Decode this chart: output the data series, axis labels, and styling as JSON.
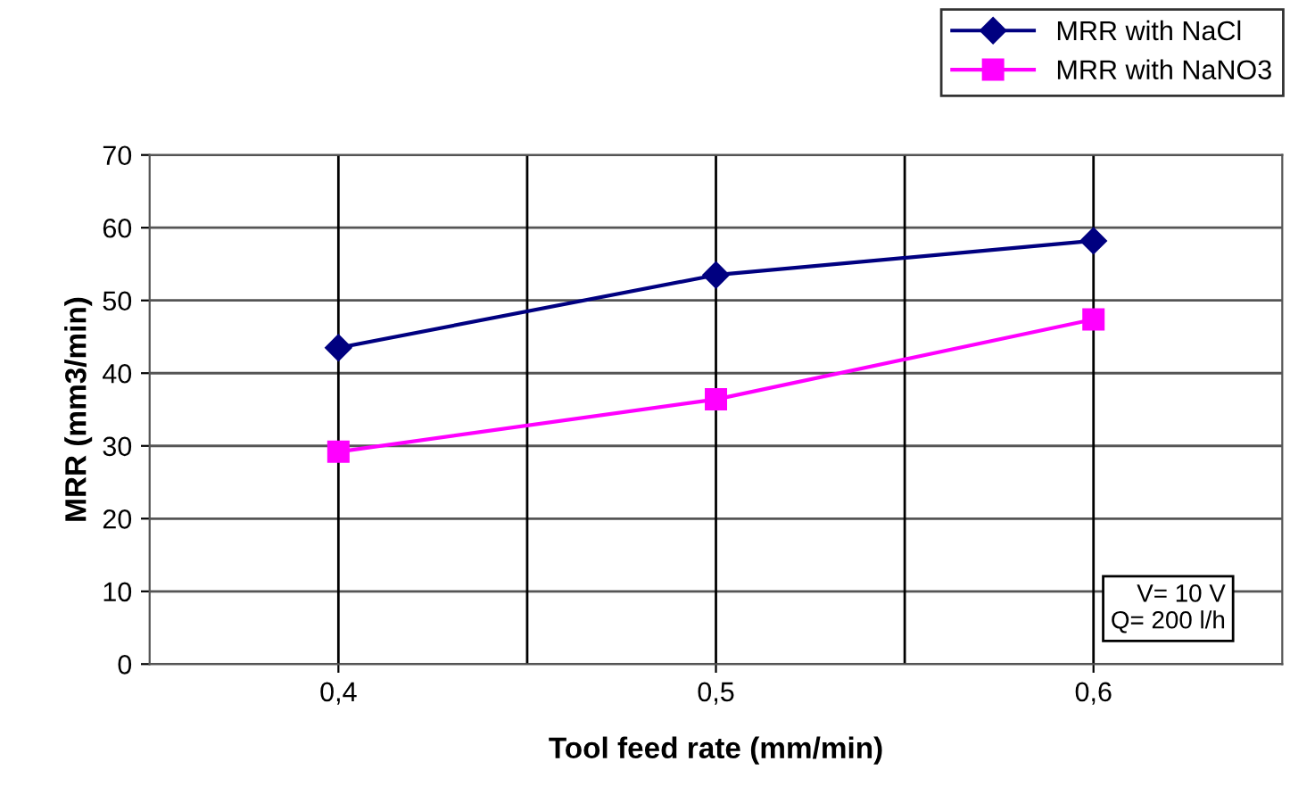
{
  "chart_data": {
    "type": "line",
    "xlabel": "Tool feed rate (mm/min)",
    "ylabel": "MRR (mm3/min)",
    "categories": [
      "0,4",
      "0,5",
      "0,6"
    ],
    "series": [
      {
        "name": "MRR with NaCl",
        "color": "#000080",
        "marker": "diamond",
        "values": [
          43.5,
          53.5,
          58.2
        ]
      },
      {
        "name": "MRR with NaNO3",
        "color": "#ff00ff",
        "marker": "square",
        "values": [
          29.2,
          36.4,
          47.4
        ]
      }
    ],
    "ylim": [
      0,
      70
    ],
    "yticks": [
      0,
      10,
      20,
      30,
      40,
      50,
      60,
      70
    ],
    "grid": true,
    "legend": "top right",
    "annotations": [
      "V= 10 V\nQ= 200 l/h"
    ]
  }
}
